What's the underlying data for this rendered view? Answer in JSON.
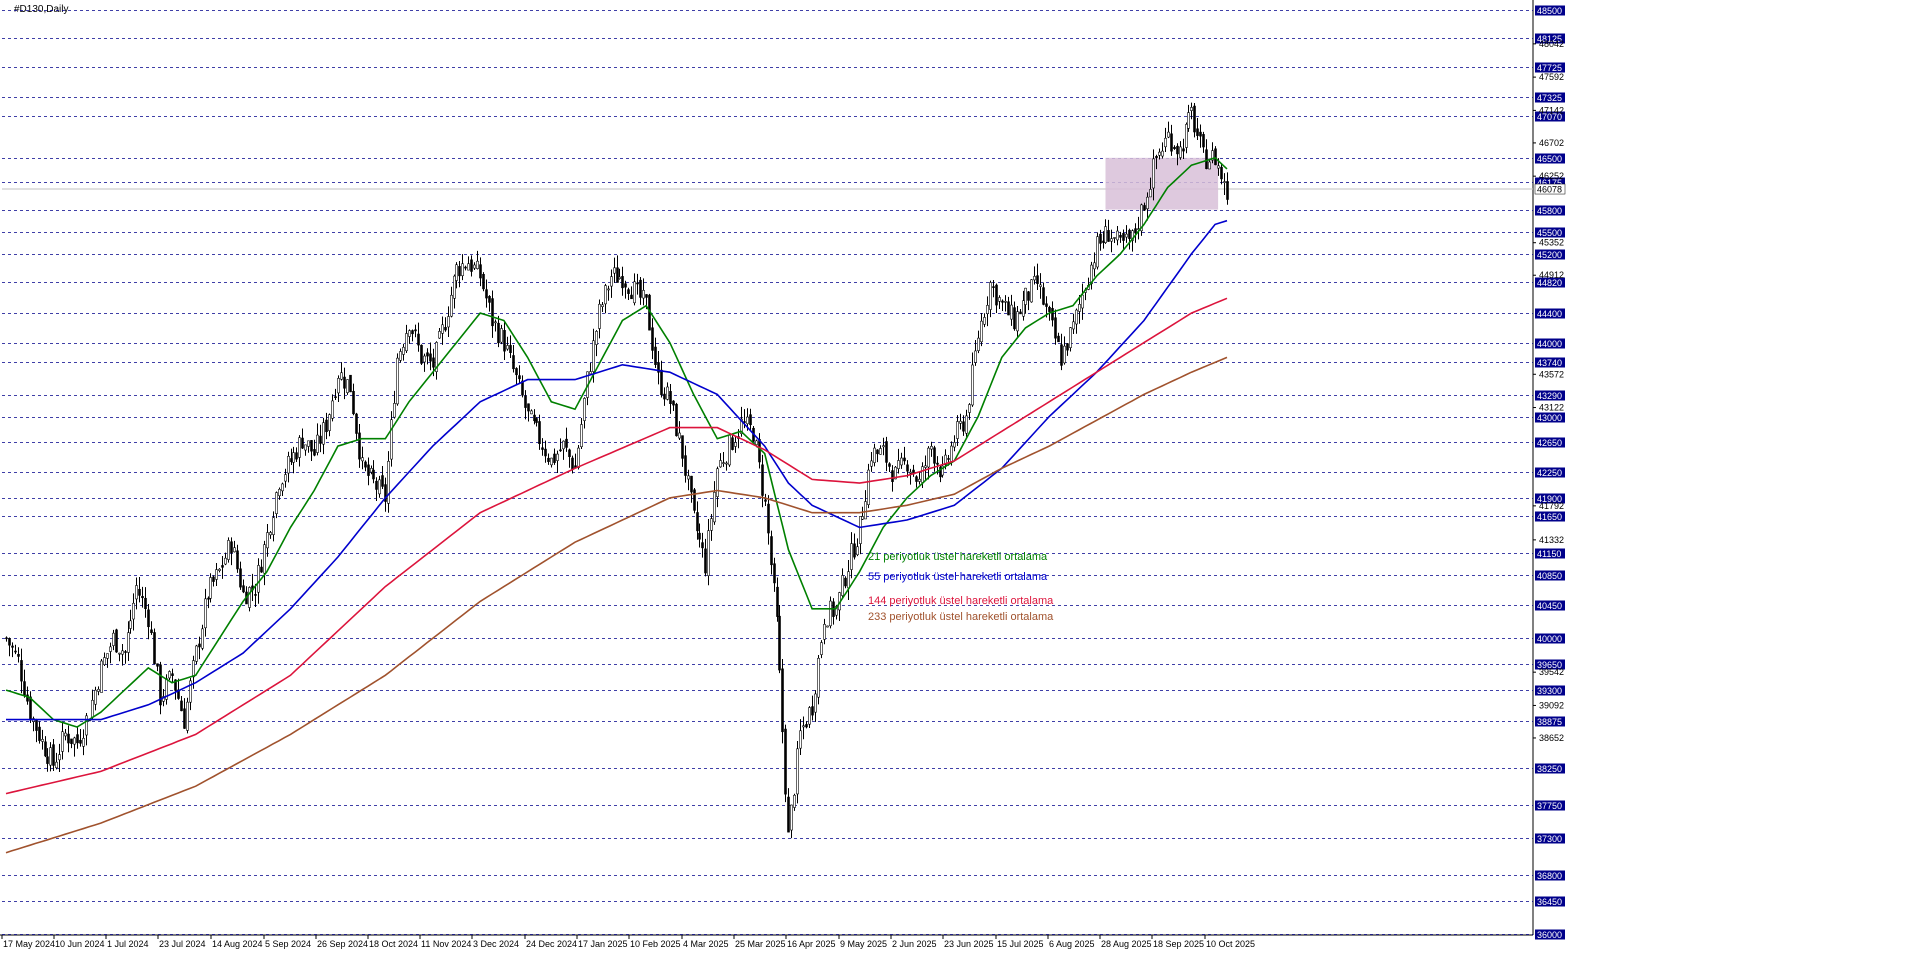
{
  "chart_data": {
    "type": "candlestick",
    "title": "#D130,Daily",
    "ylim": [
      36000,
      48500
    ],
    "grid": true,
    "price_levels": [
      48500,
      48125,
      47725,
      47325,
      47070,
      46500,
      46175,
      45800,
      45500,
      45200,
      44820,
      44400,
      44000,
      43740,
      43290,
      43000,
      42650,
      42250,
      41900,
      41650,
      41150,
      40850,
      40450,
      40000,
      39650,
      39300,
      38875,
      38250,
      37750,
      37300,
      36800,
      36450,
      36000
    ],
    "minor_price_labels": [
      48042,
      47592,
      47142,
      46702,
      46252,
      45352,
      44912,
      43572,
      43122,
      41792,
      41332,
      39542,
      39092,
      38652
    ],
    "current_price": 46078,
    "x_tick_labels": [
      "17 May 2024",
      "10 Jun 2024",
      "1 Jul 2024",
      "23 Jul 2024",
      "14 Aug 2024",
      "5 Sep 2024",
      "26 Sep 2024",
      "18 Oct 2024",
      "11 Nov 2024",
      "3 Dec 2024",
      "24 Dec 2024",
      "17 Jan 2025",
      "10 Feb 2025",
      "4 Mar 2025",
      "25 Mar 2025",
      "16 Apr 2025",
      "9 May 2025",
      "2 Jun 2025",
      "23 Jun 2025",
      "15 Jul 2025",
      "6 Aug 2025",
      "28 Aug 2025",
      "18 Sep 2025",
      "10 Oct 2025"
    ],
    "close_path": [
      [
        0,
        40000
      ],
      [
        4,
        39700
      ],
      [
        8,
        39000
      ],
      [
        12,
        38600
      ],
      [
        16,
        38300
      ],
      [
        20,
        38700
      ],
      [
        24,
        38600
      ],
      [
        28,
        39000
      ],
      [
        32,
        39600
      ],
      [
        36,
        40000
      ],
      [
        40,
        39800
      ],
      [
        44,
        40700
      ],
      [
        48,
        40300
      ],
      [
        52,
        39200
      ],
      [
        56,
        39500
      ],
      [
        60,
        38900
      ],
      [
        64,
        39800
      ],
      [
        68,
        40600
      ],
      [
        72,
        40900
      ],
      [
        76,
        41300
      ],
      [
        80,
        40600
      ],
      [
        84,
        40700
      ],
      [
        88,
        41400
      ],
      [
        92,
        42150
      ],
      [
        96,
        42400
      ],
      [
        100,
        42700
      ],
      [
        104,
        42500
      ],
      [
        108,
        42900
      ],
      [
        112,
        43600
      ],
      [
        116,
        43400
      ],
      [
        120,
        42300
      ],
      [
        124,
        42100
      ],
      [
        128,
        41900
      ],
      [
        132,
        43800
      ],
      [
        136,
        44300
      ],
      [
        140,
        43800
      ],
      [
        144,
        43700
      ],
      [
        148,
        44300
      ],
      [
        152,
        45000
      ],
      [
        156,
        45100
      ],
      [
        160,
        44900
      ],
      [
        164,
        44300
      ],
      [
        168,
        44000
      ],
      [
        172,
        43500
      ],
      [
        176,
        43000
      ],
      [
        180,
        42700
      ],
      [
        184,
        42400
      ],
      [
        188,
        42600
      ],
      [
        192,
        42300
      ],
      [
        196,
        43500
      ],
      [
        200,
        44400
      ],
      [
        204,
        44900
      ],
      [
        208,
        44900
      ],
      [
        212,
        44700
      ],
      [
        216,
        44500
      ],
      [
        220,
        43500
      ],
      [
        224,
        43200
      ],
      [
        228,
        42500
      ],
      [
        232,
        41600
      ],
      [
        236,
        41000
      ],
      [
        240,
        42300
      ],
      [
        244,
        42600
      ],
      [
        248,
        42900
      ],
      [
        252,
        42800
      ],
      [
        256,
        41800
      ],
      [
        260,
        40200
      ],
      [
        264,
        37300
      ],
      [
        268,
        38700
      ],
      [
        272,
        39100
      ],
      [
        276,
        40300
      ],
      [
        280,
        40400
      ],
      [
        284,
        41000
      ],
      [
        288,
        41500
      ],
      [
        292,
        42500
      ],
      [
        296,
        42500
      ],
      [
        300,
        42200
      ],
      [
        304,
        42400
      ],
      [
        308,
        42100
      ],
      [
        312,
        42600
      ],
      [
        316,
        42200
      ],
      [
        320,
        42700
      ],
      [
        324,
        43000
      ],
      [
        328,
        44100
      ],
      [
        332,
        44800
      ],
      [
        336,
        44500
      ],
      [
        340,
        44300
      ],
      [
        344,
        44600
      ],
      [
        348,
        44800
      ],
      [
        352,
        44300
      ],
      [
        356,
        43800
      ],
      [
        360,
        44200
      ],
      [
        364,
        44800
      ],
      [
        368,
        45300
      ],
      [
        372,
        45500
      ],
      [
        376,
        45300
      ],
      [
        380,
        45400
      ],
      [
        384,
        45900
      ],
      [
        388,
        46500
      ],
      [
        392,
        46800
      ],
      [
        396,
        46600
      ],
      [
        400,
        47100
      ],
      [
        404,
        46500
      ],
      [
        408,
        46500
      ],
      [
        412,
        46000
      ]
    ],
    "series": [
      {
        "name": "21 periyotluk üstel hareketli ortalama",
        "color": "#008000",
        "values": [
          [
            0,
            39300
          ],
          [
            8,
            39200
          ],
          [
            16,
            38900
          ],
          [
            24,
            38800
          ],
          [
            32,
            39000
          ],
          [
            40,
            39300
          ],
          [
            48,
            39600
          ],
          [
            56,
            39400
          ],
          [
            64,
            39500
          ],
          [
            72,
            40000
          ],
          [
            80,
            40500
          ],
          [
            88,
            40900
          ],
          [
            96,
            41500
          ],
          [
            104,
            42000
          ],
          [
            112,
            42600
          ],
          [
            120,
            42700
          ],
          [
            128,
            42700
          ],
          [
            136,
            43200
          ],
          [
            144,
            43600
          ],
          [
            152,
            44000
          ],
          [
            160,
            44400
          ],
          [
            168,
            44300
          ],
          [
            176,
            43800
          ],
          [
            184,
            43200
          ],
          [
            192,
            43100
          ],
          [
            200,
            43700
          ],
          [
            208,
            44300
          ],
          [
            216,
            44500
          ],
          [
            224,
            44000
          ],
          [
            232,
            43300
          ],
          [
            240,
            42700
          ],
          [
            248,
            42800
          ],
          [
            256,
            42500
          ],
          [
            264,
            41200
          ],
          [
            272,
            40400
          ],
          [
            280,
            40400
          ],
          [
            288,
            40900
          ],
          [
            296,
            41500
          ],
          [
            304,
            41900
          ],
          [
            312,
            42200
          ],
          [
            320,
            42400
          ],
          [
            328,
            43000
          ],
          [
            336,
            43800
          ],
          [
            344,
            44200
          ],
          [
            352,
            44400
          ],
          [
            360,
            44500
          ],
          [
            368,
            44900
          ],
          [
            376,
            45200
          ],
          [
            384,
            45600
          ],
          [
            392,
            46100
          ],
          [
            400,
            46400
          ],
          [
            408,
            46500
          ],
          [
            412,
            46350
          ]
        ]
      },
      {
        "name": "55 periyotluk üstel hareketli ortalama",
        "color": "#0000cd",
        "values": [
          [
            0,
            38900
          ],
          [
            16,
            38900
          ],
          [
            32,
            38900
          ],
          [
            48,
            39100
          ],
          [
            64,
            39400
          ],
          [
            80,
            39800
          ],
          [
            96,
            40400
          ],
          [
            112,
            41100
          ],
          [
            128,
            41900
          ],
          [
            144,
            42600
          ],
          [
            160,
            43200
          ],
          [
            176,
            43500
          ],
          [
            192,
            43500
          ],
          [
            208,
            43700
          ],
          [
            224,
            43600
          ],
          [
            240,
            43300
          ],
          [
            256,
            42600
          ],
          [
            264,
            42100
          ],
          [
            272,
            41800
          ],
          [
            288,
            41500
          ],
          [
            304,
            41600
          ],
          [
            320,
            41800
          ],
          [
            336,
            42300
          ],
          [
            352,
            43000
          ],
          [
            368,
            43600
          ],
          [
            384,
            44300
          ],
          [
            400,
            45200
          ],
          [
            408,
            45600
          ],
          [
            412,
            45650
          ]
        ]
      },
      {
        "name": "144 periyotluk üstel hareketli ortalama",
        "color": "#dc143c",
        "values": [
          [
            0,
            37900
          ],
          [
            32,
            38200
          ],
          [
            64,
            38700
          ],
          [
            96,
            39500
          ],
          [
            128,
            40700
          ],
          [
            160,
            41700
          ],
          [
            192,
            42300
          ],
          [
            224,
            42850
          ],
          [
            240,
            42850
          ],
          [
            256,
            42550
          ],
          [
            272,
            42150
          ],
          [
            288,
            42100
          ],
          [
            304,
            42200
          ],
          [
            320,
            42400
          ],
          [
            336,
            42800
          ],
          [
            352,
            43200
          ],
          [
            368,
            43600
          ],
          [
            384,
            44000
          ],
          [
            400,
            44400
          ],
          [
            412,
            44600
          ]
        ]
      },
      {
        "name": "233 periyotluk üstel hareketli ortalama",
        "color": "#a0522d",
        "values": [
          [
            0,
            37100
          ],
          [
            32,
            37500
          ],
          [
            64,
            38000
          ],
          [
            96,
            38700
          ],
          [
            128,
            39500
          ],
          [
            160,
            40500
          ],
          [
            192,
            41300
          ],
          [
            224,
            41900
          ],
          [
            240,
            42000
          ],
          [
            256,
            41900
          ],
          [
            272,
            41700
          ],
          [
            288,
            41700
          ],
          [
            304,
            41800
          ],
          [
            320,
            41950
          ],
          [
            336,
            42300
          ],
          [
            352,
            42600
          ],
          [
            368,
            42950
          ],
          [
            384,
            43300
          ],
          [
            400,
            43600
          ],
          [
            412,
            43800
          ]
        ]
      }
    ],
    "zone": {
      "x0": 371,
      "x1": 409,
      "y0": 45800,
      "y1": 46500,
      "color": "#d8bfd8"
    }
  }
}
